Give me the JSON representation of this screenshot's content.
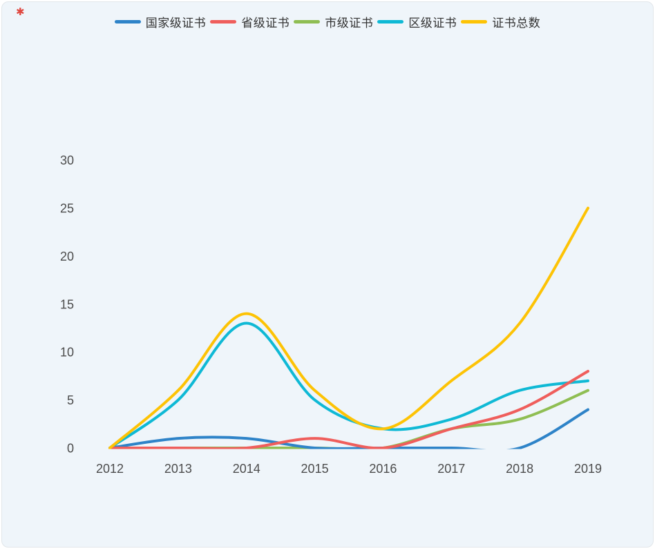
{
  "corner_mark": "✱",
  "chart_data": {
    "type": "line",
    "smooth": true,
    "grid": false,
    "legend_position": "top",
    "categories": [
      "2012",
      "2013",
      "2014",
      "2015",
      "2016",
      "2017",
      "2018",
      "2019"
    ],
    "series": [
      {
        "key": "national-level",
        "name": "国家级证书",
        "color": "#2e83c8",
        "values": [
          0,
          1,
          1,
          0,
          0,
          0,
          0,
          4
        ]
      },
      {
        "key": "provincial-level",
        "name": "省级证书",
        "color": "#ef5e5c",
        "values": [
          0,
          0,
          0,
          1,
          0,
          2,
          4,
          8
        ]
      },
      {
        "key": "municipal-level",
        "name": "市级证书",
        "color": "#8fbe53",
        "values": [
          0,
          0,
          0,
          0,
          0,
          2,
          3,
          6
        ]
      },
      {
        "key": "district-level",
        "name": "区级证书",
        "color": "#0fb9d5",
        "values": [
          0,
          5,
          13,
          5,
          2,
          3,
          6,
          7
        ]
      },
      {
        "key": "total",
        "name": "证书总数",
        "color": "#fdc305",
        "values": [
          0,
          6,
          14,
          6,
          2,
          7,
          13,
          25
        ]
      }
    ],
    "y_ticks": [
      0,
      5,
      10,
      15,
      20,
      25,
      30
    ],
    "ylim": [
      0,
      30
    ],
    "xlabel": "",
    "ylabel": "",
    "title": ""
  }
}
